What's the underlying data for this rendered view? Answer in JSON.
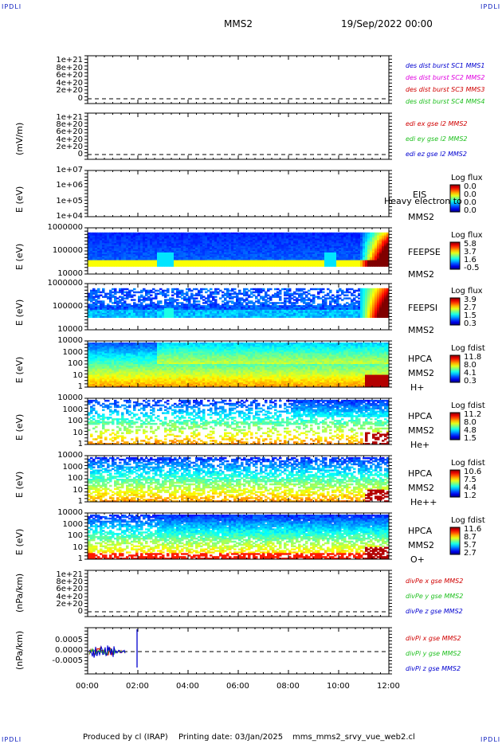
{
  "corners": {
    "tl": "IPDLI",
    "tr": "IPDLI",
    "bl": "IPDLI",
    "br": "IPDLI"
  },
  "header": {
    "spacecraft": "MMS2",
    "date": "19/Sep/2022 00:00"
  },
  "footer": {
    "produced": "Produced by cl (IRAP)",
    "printing": "Printing date: 03/Jan/2025",
    "file": "mms_mms2_srvy_vue_web2.cl"
  },
  "colors": {
    "red": "#d00000",
    "magenta": "#e000e0",
    "green": "#20c020",
    "blue": "#0000d0"
  },
  "chart_data": {
    "type": "stacked-panels",
    "x_axis": {
      "start": "00:00",
      "end": "12:00",
      "ticks": [
        "00:00",
        "02:00",
        "04:00",
        "06:00",
        "08:00",
        "10:00",
        "12:00"
      ]
    },
    "panels": [
      {
        "kind": "line",
        "ylabel": "",
        "yticks": [
          "1e+21",
          "8e+20",
          "6e+20",
          "4e+20",
          "2e+20",
          "0"
        ],
        "legend": [
          {
            "text": "des dist burst SC1 MMS1",
            "color": "blue"
          },
          {
            "text": "des dist burst SC2 MMS2",
            "color": "magenta"
          },
          {
            "text": "des dist burst SC3 MMS3",
            "color": "red"
          },
          {
            "text": "des dist burst SC4 MMS4",
            "color": "green"
          }
        ]
      },
      {
        "kind": "line",
        "ylabel": "(mV/m)",
        "yticks": [
          "1e+21",
          "8e+20",
          "6e+20",
          "4e+20",
          "2e+20",
          "0"
        ],
        "legend": [
          {
            "text": "edi ex gse l2 MMS2",
            "color": "red"
          },
          {
            "text": "edi ey gse l2 MMS2",
            "color": "green"
          },
          {
            "text": "edi ez gse l2 MMS2",
            "color": "blue"
          }
        ]
      },
      {
        "kind": "spectro-empty",
        "ylabel": "E (eV)",
        "yticks": [
          "1e+07",
          "1e+06",
          "1e+05",
          "1e+04"
        ],
        "inst": [
          "EIS",
          "MMS2"
        ],
        "overlay": "Heavy electron to",
        "cb_title": "Log flux",
        "cb_vals": [
          "0.0",
          "0.0",
          "0.0",
          "0.0"
        ]
      },
      {
        "kind": "spectro-feepse",
        "ylabel": "E (eV)",
        "yticks": [
          "1000000",
          "100000",
          "10000"
        ],
        "inst": [
          "FEEPSE",
          "MMS2"
        ],
        "cb_title": "Log flux",
        "cb_vals": [
          "5.8",
          "3.7",
          "1.6",
          "-0.5"
        ]
      },
      {
        "kind": "spectro-feepsi",
        "ylabel": "E (eV)",
        "yticks": [
          "1000000",
          "100000",
          "10000"
        ],
        "inst": [
          "FEEPSI",
          "MMS2"
        ],
        "cb_title": "Log flux",
        "cb_vals": [
          "3.9",
          "2.7",
          "1.5",
          "0.3"
        ]
      },
      {
        "kind": "spectro-hpca-h",
        "ylabel": "E (eV)",
        "yticks": [
          "10000",
          "1000",
          "100",
          "10",
          "1"
        ],
        "inst": [
          "HPCA",
          "MMS2",
          "H+"
        ],
        "cb_title": "Log fdist",
        "cb_vals": [
          "11.8",
          "8.0",
          "4.1",
          "0.3"
        ]
      },
      {
        "kind": "spectro-hpca-he",
        "ylabel": "E (eV)",
        "yticks": [
          "10000",
          "1000",
          "100",
          "10",
          "1"
        ],
        "inst": [
          "HPCA",
          "MMS2",
          "He+"
        ],
        "cb_title": "Log fdist",
        "cb_vals": [
          "11.2",
          "8.0",
          "4.8",
          "1.5"
        ]
      },
      {
        "kind": "spectro-hpca-hepp",
        "ylabel": "E (eV)",
        "yticks": [
          "10000",
          "1000",
          "100",
          "10",
          "1"
        ],
        "inst": [
          "HPCA",
          "MMS2",
          "He++"
        ],
        "cb_title": "Log fdist",
        "cb_vals": [
          "10.6",
          "7.5",
          "4.4",
          "1.2"
        ]
      },
      {
        "kind": "spectro-hpca-o",
        "ylabel": "E (eV)",
        "yticks": [
          "10000",
          "1000",
          "100",
          "10",
          "1"
        ],
        "inst": [
          "HPCA",
          "MMS2",
          "O+"
        ],
        "cb_title": "Log fdist",
        "cb_vals": [
          "11.6",
          "8.7",
          "5.7",
          "2.7"
        ]
      },
      {
        "kind": "line",
        "ylabel": "(nPa/km)",
        "yticks": [
          "1e+21",
          "8e+20",
          "6e+20",
          "4e+20",
          "2e+20",
          "0"
        ],
        "legend": [
          {
            "text": "divPe x gse MMS2",
            "color": "red"
          },
          {
            "text": "divPe y gse MMS2",
            "color": "green"
          },
          {
            "text": "divPe z gse MMS2",
            "color": "blue"
          }
        ]
      },
      {
        "kind": "line-divpi",
        "ylabel": "(nPa/km)",
        "yticks": [
          "0.0005",
          "0.0000",
          "-0.0005"
        ],
        "legend": [
          {
            "text": "divPi x gse MMS2",
            "color": "red"
          },
          {
            "text": "divPi y gse MMS2",
            "color": "green"
          },
          {
            "text": "divPi z gse MMS2",
            "color": "blue"
          }
        ]
      }
    ]
  }
}
